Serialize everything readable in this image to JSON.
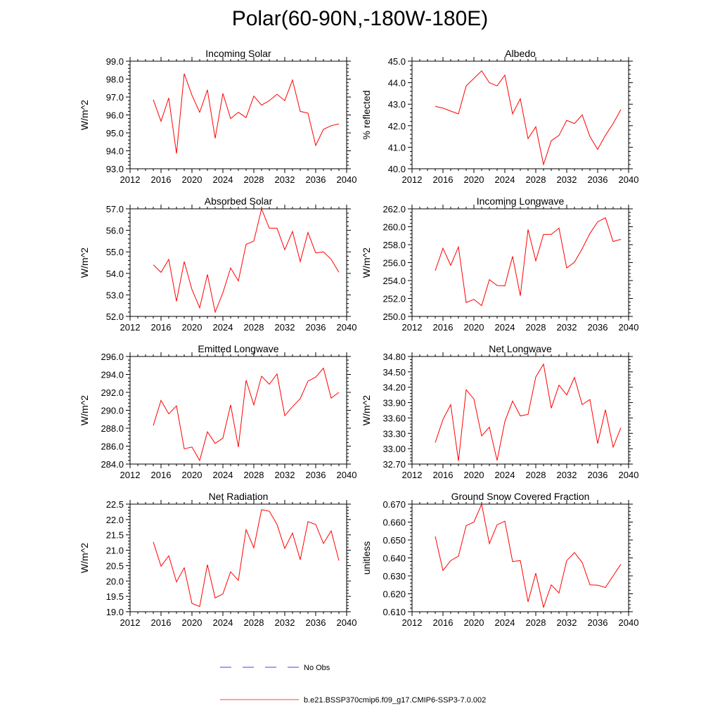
{
  "figure": {
    "title": "Polar(60-90N,-180W-180E)"
  },
  "legend": {
    "entries": [
      {
        "label": "No Obs",
        "color": "#0000ff",
        "style": "dashed"
      },
      {
        "label": "b.e21.BSSP370cmip6.f09_g17.CMIP6-SSP3-7.0.002",
        "color": "#ff0000",
        "style": "solid"
      }
    ]
  },
  "chart_data": [
    {
      "type": "line",
      "title": "Incoming Solar",
      "ylabel": "W/m^2",
      "xlim": [
        2012,
        2040
      ],
      "xticks": [
        "2012",
        "2016",
        "2020",
        "2024",
        "2028",
        "2032",
        "2036",
        "2040"
      ],
      "ylim": [
        93.0,
        99.0
      ],
      "yticks": [
        "93.0",
        "94.0",
        "95.0",
        "96.0",
        "97.0",
        "98.0",
        "99.0"
      ],
      "x": [
        2015,
        2016,
        2017,
        2018,
        2019,
        2020,
        2021,
        2022,
        2023,
        2024,
        2025,
        2026,
        2027,
        2028,
        2029,
        2030,
        2031,
        2032,
        2033,
        2034,
        2035,
        2036,
        2037,
        2038,
        2039
      ],
      "series": [
        {
          "color": "#ff0000",
          "values": [
            96.85,
            95.65,
            96.95,
            93.85,
            98.3,
            97.1,
            96.15,
            97.4,
            94.7,
            97.2,
            95.8,
            96.15,
            95.85,
            97.05,
            96.55,
            96.8,
            97.15,
            96.8,
            97.95,
            96.2,
            96.1,
            94.3,
            95.2,
            95.4,
            95.5
          ]
        }
      ]
    },
    {
      "type": "line",
      "title": "Albedo",
      "ylabel": "% reflected",
      "xlim": [
        2012,
        2040
      ],
      "xticks": [
        "2012",
        "2016",
        "2020",
        "2024",
        "2028",
        "2032",
        "2036",
        "2040"
      ],
      "ylim": [
        40.0,
        45.0
      ],
      "yticks": [
        "40.0",
        "41.0",
        "42.0",
        "43.0",
        "44.0",
        "45.0"
      ],
      "x": [
        2015,
        2016,
        2017,
        2018,
        2019,
        2020,
        2021,
        2022,
        2023,
        2024,
        2025,
        2026,
        2027,
        2028,
        2029,
        2030,
        2031,
        2032,
        2033,
        2034,
        2035,
        2036,
        2037,
        2038,
        2039
      ],
      "series": [
        {
          "color": "#ff0000",
          "values": [
            42.9,
            42.82,
            42.68,
            42.55,
            43.85,
            44.2,
            44.55,
            44.0,
            43.85,
            44.35,
            42.55,
            43.25,
            41.4,
            41.95,
            40.2,
            41.3,
            41.55,
            42.25,
            42.1,
            42.5,
            41.5,
            40.9,
            41.55,
            42.1,
            42.75
          ]
        }
      ]
    },
    {
      "type": "line",
      "title": "Absorbed Solar",
      "ylabel": "W/m^2",
      "xlim": [
        2012,
        2040
      ],
      "xticks": [
        "2012",
        "2016",
        "2020",
        "2024",
        "2028",
        "2032",
        "2036",
        "2040"
      ],
      "ylim": [
        52.0,
        57.0
      ],
      "yticks": [
        "52.0",
        "53.0",
        "54.0",
        "55.0",
        "56.0",
        "57.0"
      ],
      "x": [
        2015,
        2016,
        2017,
        2018,
        2019,
        2020,
        2021,
        2022,
        2023,
        2024,
        2025,
        2026,
        2027,
        2028,
        2029,
        2030,
        2031,
        2032,
        2033,
        2034,
        2035,
        2036,
        2037,
        2038,
        2039
      ],
      "series": [
        {
          "color": "#ff0000",
          "values": [
            54.4,
            54.05,
            54.65,
            52.7,
            54.55,
            53.25,
            52.4,
            53.95,
            52.2,
            53.1,
            54.25,
            53.65,
            55.35,
            55.5,
            57.0,
            56.1,
            56.1,
            55.1,
            55.95,
            54.55,
            55.9,
            54.95,
            55.0,
            54.65,
            54.05
          ]
        }
      ]
    },
    {
      "type": "line",
      "title": "Incoming Longwave",
      "ylabel": "W/m^2",
      "xlim": [
        2012,
        2040
      ],
      "xticks": [
        "2012",
        "2016",
        "2020",
        "2024",
        "2028",
        "2032",
        "2036",
        "2040"
      ],
      "ylim": [
        250.0,
        262.0
      ],
      "yticks": [
        "250.0",
        "252.0",
        "254.0",
        "256.0",
        "258.0",
        "260.0",
        "262.0"
      ],
      "x": [
        2015,
        2016,
        2017,
        2018,
        2019,
        2020,
        2021,
        2022,
        2023,
        2024,
        2025,
        2026,
        2027,
        2028,
        2029,
        2030,
        2031,
        2032,
        2033,
        2034,
        2035,
        2036,
        2037,
        2038,
        2039
      ],
      "series": [
        {
          "color": "#ff0000",
          "values": [
            255.1,
            257.6,
            255.7,
            257.75,
            251.55,
            251.9,
            251.2,
            254.1,
            253.45,
            253.4,
            256.7,
            252.3,
            259.7,
            256.2,
            259.15,
            259.15,
            259.85,
            255.4,
            256.05,
            257.55,
            259.25,
            260.55,
            261.0,
            258.35,
            258.6
          ]
        }
      ]
    },
    {
      "type": "line",
      "title": "Emitted Longwave",
      "ylabel": "W/m^2",
      "xlim": [
        2012,
        2040
      ],
      "xticks": [
        "2012",
        "2016",
        "2020",
        "2024",
        "2028",
        "2032",
        "2036",
        "2040"
      ],
      "ylim": [
        284.0,
        296.0
      ],
      "yticks": [
        "284.0",
        "286.0",
        "288.0",
        "290.0",
        "292.0",
        "294.0",
        "296.0"
      ],
      "x": [
        2015,
        2016,
        2017,
        2018,
        2019,
        2020,
        2021,
        2022,
        2023,
        2024,
        2025,
        2026,
        2027,
        2028,
        2029,
        2030,
        2031,
        2032,
        2033,
        2034,
        2035,
        2036,
        2037,
        2038,
        2039
      ],
      "series": [
        {
          "color": "#ff0000",
          "values": [
            288.3,
            291.1,
            289.6,
            290.5,
            285.7,
            285.9,
            284.4,
            287.6,
            286.3,
            286.9,
            290.6,
            285.9,
            293.35,
            290.6,
            293.8,
            292.9,
            294.05,
            289.4,
            290.4,
            291.3,
            293.25,
            293.7,
            294.7,
            291.35,
            292.0
          ]
        }
      ]
    },
    {
      "type": "line",
      "title": "Net Longwave",
      "ylabel": "W/m^2",
      "xlim": [
        2012,
        2040
      ],
      "xticks": [
        "2012",
        "2016",
        "2020",
        "2024",
        "2028",
        "2032",
        "2036",
        "2040"
      ],
      "ylim": [
        32.7,
        34.8
      ],
      "yticks": [
        "32.70",
        "33.00",
        "33.30",
        "33.60",
        "33.90",
        "34.20",
        "34.50",
        "34.80"
      ],
      "x": [
        2015,
        2016,
        2017,
        2018,
        2019,
        2020,
        2021,
        2022,
        2023,
        2024,
        2025,
        2026,
        2027,
        2028,
        2029,
        2030,
        2031,
        2032,
        2033,
        2034,
        2035,
        2036,
        2037,
        2038,
        2039
      ],
      "series": [
        {
          "color": "#ff0000",
          "values": [
            33.12,
            33.57,
            33.86,
            32.76,
            34.15,
            33.97,
            33.25,
            33.42,
            32.77,
            33.53,
            33.93,
            33.64,
            33.67,
            34.4,
            34.65,
            33.79,
            34.24,
            34.05,
            34.39,
            33.86,
            33.96,
            33.1,
            33.76,
            33.03,
            33.41
          ]
        }
      ]
    },
    {
      "type": "line",
      "title": "Net Radiation",
      "ylabel": "W/m^2",
      "xlim": [
        2012,
        2040
      ],
      "xticks": [
        "2012",
        "2016",
        "2020",
        "2024",
        "2028",
        "2032",
        "2036",
        "2040"
      ],
      "ylim": [
        19.0,
        22.5
      ],
      "yticks": [
        "19.0",
        "19.5",
        "20.0",
        "20.5",
        "21.0",
        "21.5",
        "22.0",
        "22.5"
      ],
      "x": [
        2015,
        2016,
        2017,
        2018,
        2019,
        2020,
        2021,
        2022,
        2023,
        2024,
        2025,
        2026,
        2027,
        2028,
        2029,
        2030,
        2031,
        2032,
        2033,
        2034,
        2035,
        2036,
        2037,
        2038,
        2039
      ],
      "series": [
        {
          "color": "#ff0000",
          "values": [
            21.27,
            20.48,
            20.82,
            19.97,
            20.43,
            19.27,
            19.17,
            20.53,
            19.45,
            19.58,
            20.3,
            20.02,
            21.67,
            21.08,
            22.32,
            22.27,
            21.84,
            21.06,
            21.56,
            20.69,
            21.93,
            21.84,
            21.22,
            21.63,
            20.66
          ]
        }
      ]
    },
    {
      "type": "line",
      "title": "Ground Snow Covered Fraction",
      "ylabel": "unitless",
      "xlim": [
        2012,
        2040
      ],
      "xticks": [
        "2012",
        "2016",
        "2020",
        "2024",
        "2028",
        "2032",
        "2036",
        "2040"
      ],
      "ylim": [
        0.61,
        0.67
      ],
      "yticks": [
        "0.610",
        "0.620",
        "0.630",
        "0.640",
        "0.650",
        "0.660",
        "0.670"
      ],
      "x": [
        2015,
        2016,
        2017,
        2018,
        2019,
        2020,
        2021,
        2022,
        2023,
        2024,
        2025,
        2026,
        2027,
        2028,
        2029,
        2030,
        2031,
        2032,
        2033,
        2034,
        2035,
        2036,
        2037,
        2038,
        2039
      ],
      "series": [
        {
          "color": "#ff0000",
          "values": [
            0.652,
            0.633,
            0.6385,
            0.641,
            0.658,
            0.66,
            0.67,
            0.648,
            0.6585,
            0.6605,
            0.638,
            0.6385,
            0.6155,
            0.6315,
            0.6125,
            0.625,
            0.6205,
            0.6385,
            0.643,
            0.6375,
            0.625,
            0.6248,
            0.6235,
            0.63,
            0.6365
          ]
        }
      ]
    }
  ]
}
